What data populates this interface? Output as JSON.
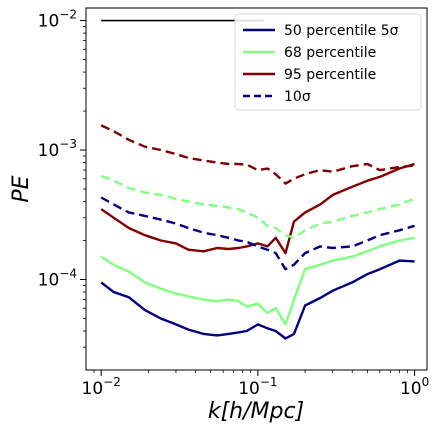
{
  "chart_data": {
    "type": "line",
    "xlabel": "k[h/Mpc]",
    "ylabel": "PE",
    "xscale": "log",
    "yscale": "log",
    "xlim": [
      0.008,
      1.2
    ],
    "ylim": [
      2e-05,
      0.0125
    ],
    "x_ticks": [
      {
        "value": 0.01,
        "label": "10^-2"
      },
      {
        "value": 0.1,
        "label": "10^-1"
      },
      {
        "value": 1,
        "label": "10^0"
      }
    ],
    "y_ticks": [
      {
        "value": 0.0001,
        "label": "10^-4"
      },
      {
        "value": 0.001,
        "label": "10^-3"
      },
      {
        "value": 0.01,
        "label": "10^-2"
      }
    ],
    "legend_position": "top-right",
    "reference_line": {
      "y": 0.01,
      "x_start": 0.01,
      "x_end": 0.11,
      "color": "#000000"
    },
    "series": [
      {
        "name": "50 percentile 5σ",
        "color": "#000080",
        "style": "solid",
        "x": [
          0.01,
          0.012,
          0.015,
          0.019,
          0.024,
          0.03,
          0.036,
          0.045,
          0.055,
          0.065,
          0.075,
          0.085,
          0.1,
          0.115,
          0.13,
          0.15,
          0.17,
          0.2,
          0.25,
          0.3,
          0.4,
          0.5,
          0.6,
          0.8,
          1.0
        ],
        "values": [
          9.5e-05,
          8e-05,
          7.3e-05,
          5.8e-05,
          5e-05,
          4.5e-05,
          4.1e-05,
          3.8e-05,
          3.7e-05,
          3.8e-05,
          3.9e-05,
          4e-05,
          4.5e-05,
          4.2e-05,
          4e-05,
          3.5e-05,
          3.8e-05,
          6.3e-05,
          7.2e-05,
          8.2e-05,
          9.5e-05,
          0.00011,
          0.00012,
          0.00014,
          0.000138
        ]
      },
      {
        "name": "68 percentile",
        "color": "#80ff80",
        "style": "solid",
        "x": [
          0.01,
          0.012,
          0.015,
          0.019,
          0.024,
          0.03,
          0.036,
          0.045,
          0.055,
          0.065,
          0.075,
          0.085,
          0.1,
          0.115,
          0.13,
          0.15,
          0.17,
          0.2,
          0.25,
          0.3,
          0.4,
          0.5,
          0.6,
          0.8,
          1.0
        ],
        "values": [
          0.00015,
          0.00013,
          0.000115,
          9.5e-05,
          8.5e-05,
          7.8e-05,
          7.4e-05,
          7e-05,
          6.8e-05,
          7e-05,
          6.8e-05,
          6.2e-05,
          6.5e-05,
          5.5e-05,
          6e-05,
          4.5e-05,
          7e-05,
          0.00012,
          0.00013,
          0.00014,
          0.00015,
          0.000165,
          0.00018,
          0.0002,
          0.00021
        ]
      },
      {
        "name": "95 percentile",
        "color": "#800000",
        "style": "solid",
        "x": [
          0.01,
          0.012,
          0.015,
          0.019,
          0.024,
          0.03,
          0.036,
          0.045,
          0.055,
          0.065,
          0.075,
          0.085,
          0.1,
          0.115,
          0.13,
          0.15,
          0.17,
          0.2,
          0.25,
          0.3,
          0.4,
          0.5,
          0.6,
          0.8,
          1.0
        ],
        "values": [
          0.00035,
          0.0003,
          0.00025,
          0.00022,
          0.0002,
          0.00019,
          0.00017,
          0.000165,
          0.000175,
          0.000172,
          0.000175,
          0.00018,
          0.00019,
          0.00018,
          0.00021,
          0.00016,
          0.00028,
          0.00033,
          0.00038,
          0.00045,
          0.00052,
          0.00058,
          0.00062,
          0.00072,
          0.00078
        ]
      },
      {
        "name": "10σ",
        "color": "#000080",
        "style": "dashed",
        "x": [
          0.01,
          0.012,
          0.015,
          0.019,
          0.024,
          0.03,
          0.036,
          0.045,
          0.055,
          0.065,
          0.075,
          0.085,
          0.1,
          0.115,
          0.13,
          0.15,
          0.17,
          0.2,
          0.25,
          0.3,
          0.4,
          0.5,
          0.6,
          0.8,
          1.0
        ],
        "values": [
          0.00043,
          0.00038,
          0.00033,
          0.00031,
          0.00029,
          0.00027,
          0.00025,
          0.00023,
          0.00022,
          0.00021,
          0.0002,
          0.000195,
          0.00018,
          0.00017,
          0.00016,
          0.00012,
          0.00013,
          0.00016,
          0.00018,
          0.000175,
          0.00018,
          0.0002,
          0.00022,
          0.00024,
          0.00026
        ]
      },
      {
        "name": "",
        "color": "#80ff80",
        "style": "dashed",
        "x": [
          0.01,
          0.012,
          0.015,
          0.019,
          0.024,
          0.03,
          0.036,
          0.045,
          0.055,
          0.065,
          0.075,
          0.085,
          0.1,
          0.115,
          0.13,
          0.15,
          0.17,
          0.2,
          0.25,
          0.3,
          0.4,
          0.5,
          0.6,
          0.8,
          1.0
        ],
        "values": [
          0.00063,
          0.00058,
          0.00051,
          0.00047,
          0.00045,
          0.00042,
          0.0004,
          0.00038,
          0.00037,
          0.00036,
          0.00035,
          0.00033,
          0.0003,
          0.00026,
          0.00025,
          0.00022,
          0.00021,
          0.00024,
          0.00027,
          0.00028,
          0.00031,
          0.00033,
          0.00035,
          0.00038,
          0.00042
        ]
      },
      {
        "name": "",
        "color": "#800000",
        "style": "dashed",
        "x": [
          0.01,
          0.012,
          0.015,
          0.019,
          0.024,
          0.03,
          0.036,
          0.045,
          0.055,
          0.065,
          0.075,
          0.085,
          0.1,
          0.115,
          0.13,
          0.15,
          0.17,
          0.2,
          0.25,
          0.3,
          0.4,
          0.5,
          0.6,
          0.8,
          1.0
        ],
        "values": [
          0.00155,
          0.0014,
          0.0012,
          0.00106,
          0.001,
          0.00093,
          0.00087,
          0.00083,
          0.0008,
          0.00078,
          0.00078,
          0.00077,
          0.0007,
          0.00072,
          0.00065,
          0.00055,
          0.0006,
          0.00065,
          0.0007,
          0.00068,
          0.00075,
          0.00078,
          0.0007,
          0.00074,
          0.00076
        ]
      }
    ]
  }
}
